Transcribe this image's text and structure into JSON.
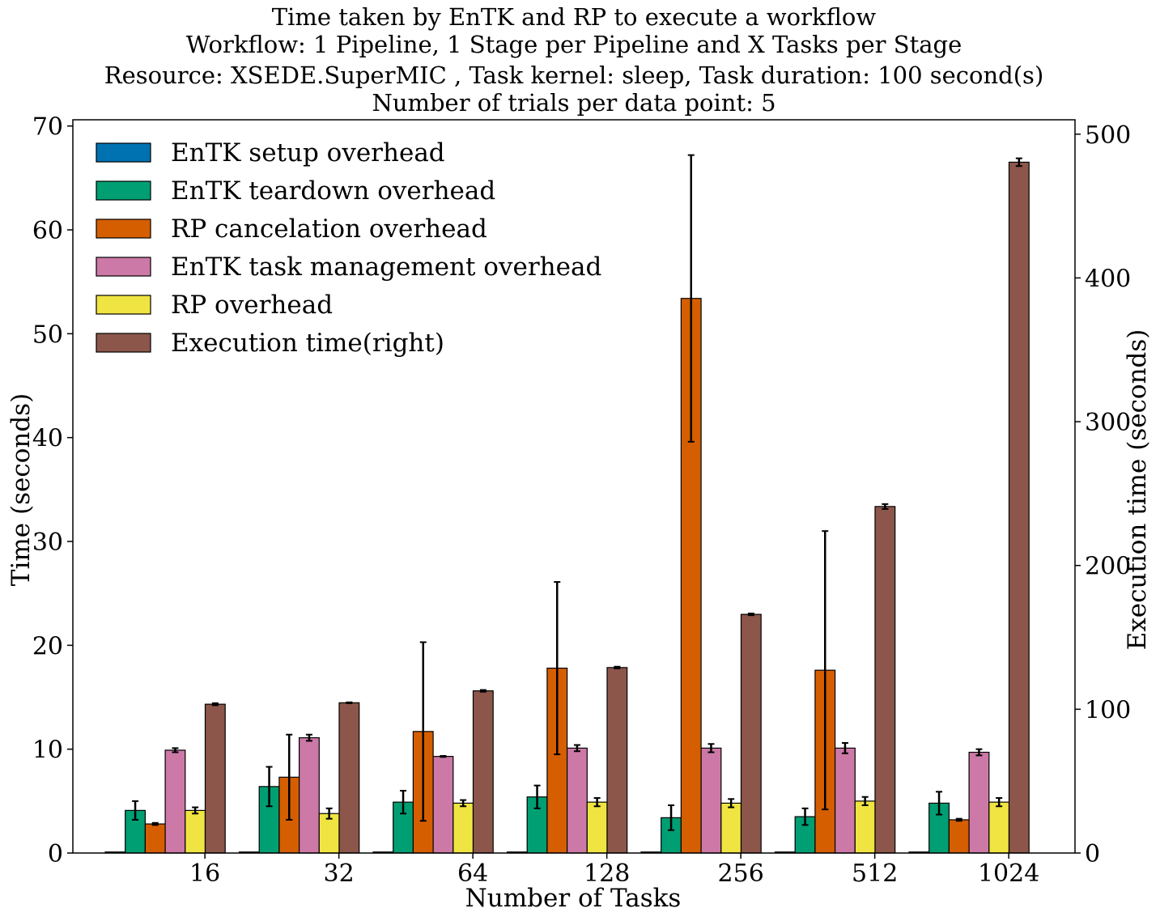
{
  "chart_data": {
    "type": "bar",
    "title": [
      "Time taken by EnTK and RP to execute a workflow",
      "Workflow: 1 Pipeline, 1 Stage per Pipeline and X Tasks per Stage",
      "Resource: XSEDE.SuperMIC , Task kernel: sleep, Task duration: 100 second(s)",
      "Number of trials per data point: 5"
    ],
    "xlabel": "Number of Tasks",
    "ylabel": "Time (seconds)",
    "ylabel_right": "Execution time (seconds)",
    "categories": [
      "16",
      "32",
      "64",
      "128",
      "256",
      "512",
      "1024"
    ],
    "ylim": [
      0,
      70.6
    ],
    "ylim_right": [
      0,
      510
    ],
    "yticks": [
      0,
      10,
      20,
      30,
      40,
      50,
      60,
      70
    ],
    "yticks_right": [
      0,
      100,
      200,
      300,
      400,
      500
    ],
    "legend_position": "top-left",
    "series": [
      {
        "name": "EnTK setup overhead",
        "axis": "left",
        "color": "#0072b2",
        "values": [
          0.1,
          0.1,
          0.1,
          0.1,
          0.1,
          0.1,
          0.1
        ],
        "errors": [
          0,
          0,
          0,
          0,
          0,
          0,
          0
        ]
      },
      {
        "name": "EnTK teardown overhead",
        "axis": "left",
        "color": "#009e73",
        "values": [
          4.1,
          6.4,
          4.9,
          5.4,
          3.4,
          3.5,
          4.8
        ],
        "errors": [
          0.9,
          1.9,
          1.1,
          1.1,
          1.2,
          0.8,
          1.1
        ]
      },
      {
        "name": "RP cancelation overhead",
        "axis": "left",
        "color": "#d55e00",
        "values": [
          2.8,
          7.3,
          11.7,
          17.8,
          53.4,
          17.6,
          3.2
        ],
        "errors": [
          0.1,
          4.1,
          8.6,
          8.3,
          13.8,
          13.4,
          0.1
        ]
      },
      {
        "name": "EnTK task management overhead",
        "axis": "left",
        "color": "#cc79a7",
        "values": [
          9.9,
          11.1,
          9.3,
          10.1,
          10.1,
          10.1,
          9.7
        ],
        "errors": [
          0.2,
          0.3,
          0.05,
          0.3,
          0.4,
          0.5,
          0.3
        ]
      },
      {
        "name": "RP overhead",
        "axis": "left",
        "color": "#f0e442",
        "values": [
          4.1,
          3.8,
          4.8,
          4.9,
          4.8,
          5.0,
          4.9
        ],
        "errors": [
          0.3,
          0.5,
          0.3,
          0.4,
          0.4,
          0.4,
          0.4
        ]
      },
      {
        "name": "Execution time(right)",
        "axis": "right",
        "color": "#8c564b",
        "values": [
          103.5,
          104.5,
          112.8,
          129.0,
          166.0,
          241.0,
          480.5
        ],
        "errors": [
          0.7,
          0.3,
          0.6,
          0.6,
          0.6,
          1.7,
          2.7
        ]
      }
    ]
  }
}
